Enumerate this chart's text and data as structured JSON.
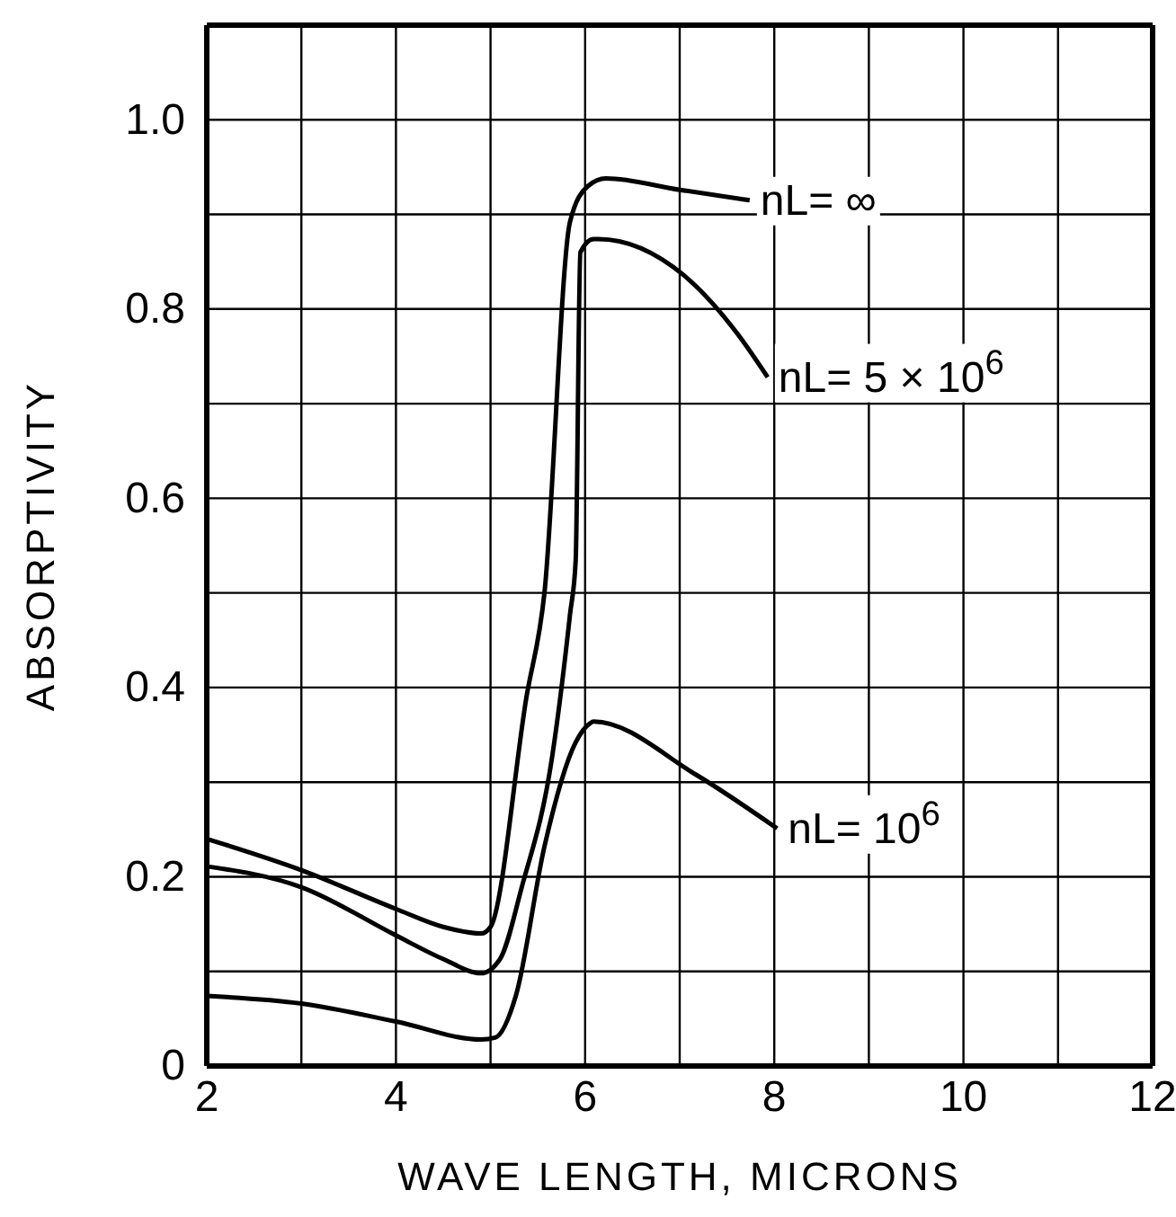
{
  "chart_data": {
    "type": "line",
    "xlabel": "WAVE LENGTH, MICRONS",
    "ylabel": "ABSORPTIVITY",
    "xlim": [
      2,
      12
    ],
    "ylim": [
      0,
      1.1
    ],
    "xticks": [
      2,
      {
        "value": 3,
        "label": null
      },
      4,
      {
        "value": 5,
        "label": null
      },
      6,
      {
        "value": 7,
        "label": null
      },
      8,
      {
        "value": 9,
        "label": null
      },
      10,
      {
        "value": 11,
        "label": null
      },
      12
    ],
    "yticks": [
      {
        "value": 0,
        "label": "0"
      },
      {
        "value": 0.1,
        "label": null
      },
      {
        "value": 0.2,
        "label": "0.2"
      },
      {
        "value": 0.3,
        "label": null
      },
      {
        "value": 0.4,
        "label": "0.4"
      },
      {
        "value": 0.5,
        "label": null
      },
      {
        "value": 0.6,
        "label": "0.6"
      },
      {
        "value": 0.7,
        "label": null
      },
      {
        "value": 0.8,
        "label": "0.8"
      },
      {
        "value": 0.9,
        "label": null
      },
      {
        "value": 1.0,
        "label": "1.0"
      },
      {
        "value": 1.1,
        "label": null
      }
    ],
    "grid": true,
    "marker": "none",
    "line_style": "solid",
    "series": [
      {
        "name": "nL= ∞",
        "color": "#000000",
        "x": [
          2,
          3,
          4,
          4.5,
          4.9,
          5,
          5.38,
          5.57,
          5.84,
          6.03,
          6.22,
          7,
          7.74
        ],
        "values": [
          0.24,
          0.207,
          0.166,
          0.147,
          0.14,
          0.147,
          0.39,
          0.5,
          0.892,
          0.93,
          0.938,
          0.926,
          0.915
        ]
      },
      {
        "name": "nL= 5 × 10$^{6}$",
        "color": "#000000",
        "x": [
          2,
          3,
          4,
          4.5,
          4.9,
          5.1,
          5.33,
          5.65,
          5.84,
          5.9,
          5.95,
          6.09,
          6.14,
          7.04,
          7.61,
          7.93
        ],
        "values": [
          0.211,
          0.189,
          0.138,
          0.113,
          0.098,
          0.113,
          0.189,
          0.326,
          0.477,
          0.534,
          0.86,
          0.874,
          0.874,
          0.836,
          0.774,
          0.728
        ]
      },
      {
        "name": "nL= 10$^{6}$",
        "color": "#000000",
        "x": [
          2,
          3,
          4,
          4.9,
          5.05,
          5.27,
          5.57,
          5.9,
          6.05,
          6.09,
          7.17,
          8.03
        ],
        "values": [
          0.074,
          0.066,
          0.047,
          0.028,
          0.03,
          0.075,
          0.232,
          0.342,
          0.362,
          0.364,
          0.308,
          0.251
        ]
      }
    ]
  }
}
